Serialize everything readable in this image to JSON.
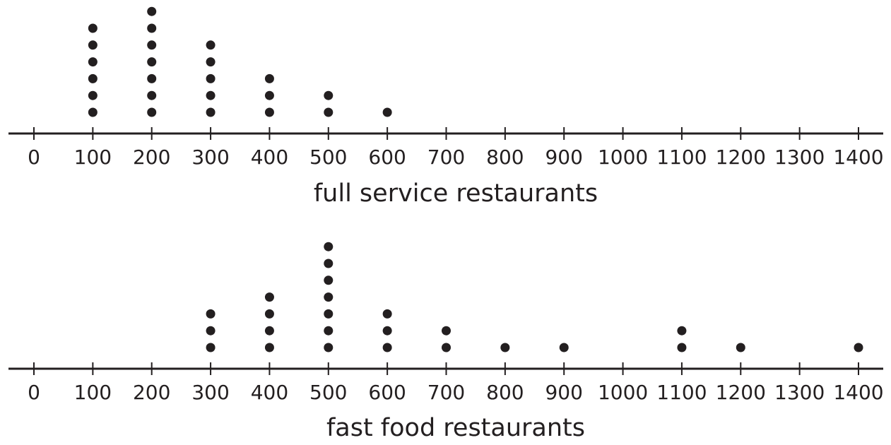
{
  "chart_data": [
    {
      "type": "dot-plot",
      "xlabel": "full service restaurants",
      "xlim": [
        0,
        1400
      ],
      "ticks": [
        "0",
        "100",
        "200",
        "300",
        "400",
        "500",
        "600",
        "700",
        "800",
        "900",
        "1000",
        "1100",
        "1200",
        "1300",
        "1400"
      ],
      "points": [
        {
          "x": 100,
          "count": 6
        },
        {
          "x": 200,
          "count": 7
        },
        {
          "x": 300,
          "count": 5
        },
        {
          "x": 400,
          "count": 3
        },
        {
          "x": 500,
          "count": 2
        },
        {
          "x": 600,
          "count": 1
        }
      ],
      "color": "#231f20"
    },
    {
      "type": "dot-plot",
      "xlabel": "fast food restaurants",
      "xlim": [
        0,
        1400
      ],
      "ticks": [
        "0",
        "100",
        "200",
        "300",
        "400",
        "500",
        "600",
        "700",
        "800",
        "900",
        "1000",
        "1100",
        "1200",
        "1300",
        "1400"
      ],
      "points": [
        {
          "x": 300,
          "count": 3
        },
        {
          "x": 400,
          "count": 4
        },
        {
          "x": 500,
          "count": 7
        },
        {
          "x": 600,
          "count": 3
        },
        {
          "x": 700,
          "count": 2
        },
        {
          "x": 800,
          "count": 1
        },
        {
          "x": 900,
          "count": 1
        },
        {
          "x": 1100,
          "count": 2
        },
        {
          "x": 1200,
          "count": 1
        },
        {
          "x": 1400,
          "count": 1
        }
      ],
      "color": "#231f20"
    }
  ]
}
